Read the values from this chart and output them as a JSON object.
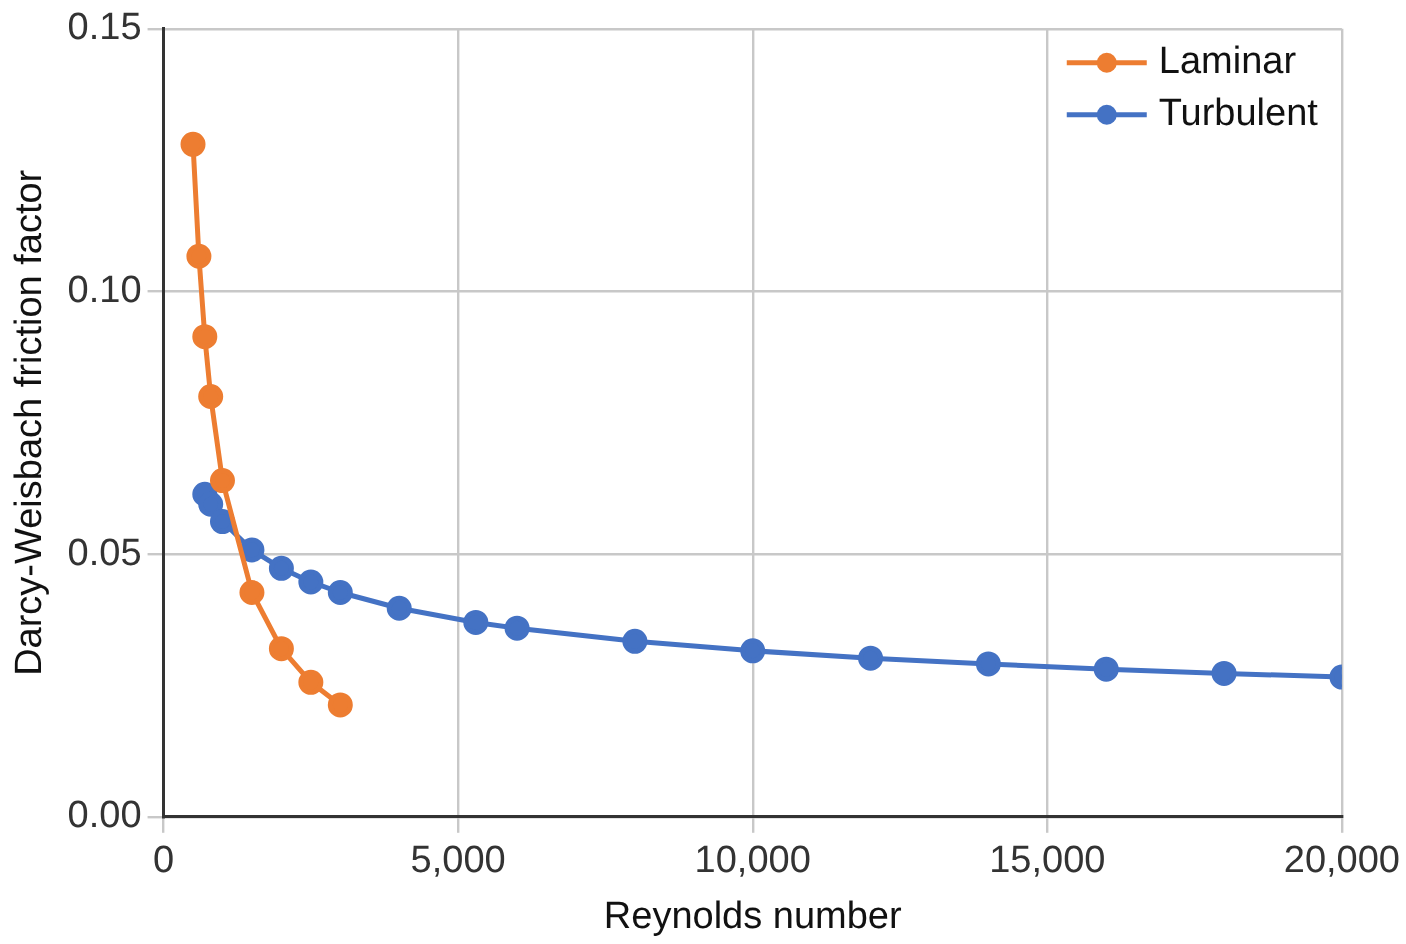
{
  "chart_data": {
    "type": "line",
    "xlabel": "Reynolds number",
    "ylabel": "Darcy-Weisbach friction factor",
    "xlim": [
      0,
      20000
    ],
    "xticks": [
      0,
      {
        "value": 5000,
        "label": "5,000"
      },
      {
        "value": 10000,
        "label": "10,000"
      },
      {
        "value": 15000,
        "label": "15,000"
      },
      {
        "value": 20000,
        "label": "20,000"
      }
    ],
    "ylim": [
      0,
      0.15
    ],
    "yticks": [
      {
        "value": 0,
        "label": "0.00"
      },
      {
        "value": 0.05,
        "label": "0.05"
      },
      {
        "value": 0.1,
        "label": "0.10"
      },
      {
        "value": 0.15,
        "label": "0.15"
      }
    ],
    "grid": true,
    "legend": "top right",
    "marker": "circle",
    "line_style": "solid",
    "series": [
      {
        "name": "Laminar",
        "color": "#ed7d31",
        "x": [
          500,
          600,
          700,
          800,
          1000,
          1500,
          2000,
          2500,
          3000
        ],
        "values": [
          0.128,
          0.1067,
          0.0914,
          0.08,
          0.064,
          0.0427,
          0.032,
          0.0256,
          0.0213
        ]
      },
      {
        "name": "Turbulent",
        "color": "#4472c4",
        "x": [
          700,
          800,
          1000,
          1500,
          2000,
          2500,
          3000,
          4000,
          5300,
          6000,
          8000,
          10000,
          12000,
          14000,
          16000,
          18000,
          20000
        ],
        "values": [
          0.0614,
          0.0595,
          0.0562,
          0.0508,
          0.0473,
          0.0447,
          0.0427,
          0.0397,
          0.037,
          0.0359,
          0.0334,
          0.0316,
          0.0302,
          0.0291,
          0.0281,
          0.0273,
          0.0266
        ]
      }
    ]
  }
}
